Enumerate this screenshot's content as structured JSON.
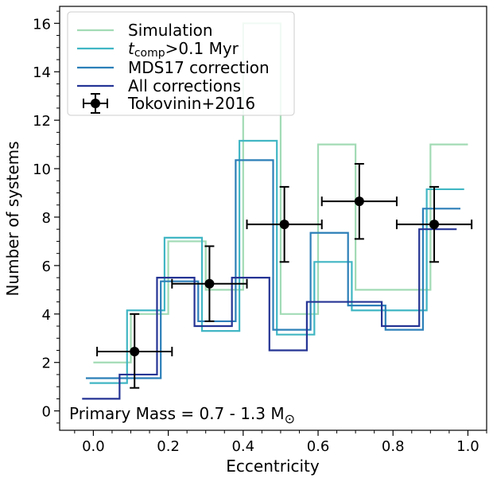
{
  "chart_data": {
    "type": "step-histogram",
    "xlabel": "Eccentricity",
    "ylabel": "Number of systems",
    "xlim": [
      -0.09,
      1.05
    ],
    "ylim": [
      -0.8,
      16.7
    ],
    "xticks": [
      0.0,
      0.2,
      0.4,
      0.6,
      0.8,
      1.0
    ],
    "xtick_labels": [
      "0.0",
      "0.2",
      "0.4",
      "0.6",
      "0.8",
      "1.0"
    ],
    "yticks": [
      0,
      2,
      4,
      6,
      8,
      10,
      12,
      14,
      16
    ],
    "ytick_labels": [
      "0",
      "2",
      "4",
      "6",
      "8",
      "10",
      "12",
      "14",
      "16"
    ],
    "annotation": "Primary Mass = 0.7 - 1.3 M",
    "annotation_symbol": "⊙",
    "legend_position": "upper-left",
    "series": [
      {
        "name": "Simulation",
        "name_parts": [
          "Simulation"
        ],
        "color": "#a2dbb5",
        "edges": [
          0.0,
          0.1,
          0.2,
          0.3,
          0.4,
          0.5,
          0.6,
          0.7,
          0.8,
          0.9,
          1.0
        ],
        "values": [
          2,
          4,
          7,
          5,
          16,
          4,
          11,
          5,
          5,
          11
        ]
      },
      {
        "name": "tcomp>0.1 Myr",
        "name_parts": [
          "t",
          "comp",
          ">0.1 Myr"
        ],
        "color": "#41b6c4",
        "edges": [
          -0.01,
          0.09,
          0.19,
          0.29,
          0.39,
          0.49,
          0.59,
          0.69,
          0.79,
          0.89,
          0.99
        ],
        "values": [
          1.15,
          4.15,
          7.15,
          3.3,
          11.15,
          3.15,
          6.15,
          4.15,
          4.15,
          9.15
        ]
      },
      {
        "name": "MDS17 correction",
        "name_parts": [
          "MDS17 correction"
        ],
        "color": "#2c7fb8",
        "edges": [
          -0.02,
          0.08,
          0.18,
          0.28,
          0.38,
          0.48,
          0.58,
          0.68,
          0.78,
          0.88,
          0.98
        ],
        "values": [
          1.35,
          1.35,
          5.35,
          3.7,
          10.35,
          3.35,
          7.35,
          4.35,
          3.35,
          8.35
        ]
      },
      {
        "name": "All corrections",
        "name_parts": [
          "All corrections"
        ],
        "color": "#253494",
        "edges": [
          -0.03,
          0.07,
          0.17,
          0.27,
          0.37,
          0.47,
          0.57,
          0.67,
          0.77,
          0.87,
          0.97
        ],
        "values": [
          0.5,
          1.5,
          5.5,
          3.5,
          5.5,
          2.5,
          4.5,
          4.5,
          3.5,
          7.5
        ]
      }
    ],
    "observations": {
      "name": "Tokovinin+2016",
      "color": "#000000",
      "points": [
        {
          "x": 0.11,
          "y": 2.45,
          "xerr": 0.1,
          "yerr_low": 1.5,
          "yerr_high": 1.55
        },
        {
          "x": 0.31,
          "y": 5.25,
          "xerr": 0.1,
          "yerr_low": 1.55,
          "yerr_high": 1.55
        },
        {
          "x": 0.51,
          "y": 7.7,
          "xerr": 0.1,
          "yerr_low": 1.55,
          "yerr_high": 1.55
        },
        {
          "x": 0.71,
          "y": 8.65,
          "xerr": 0.1,
          "yerr_low": 1.55,
          "yerr_high": 1.55
        },
        {
          "x": 0.91,
          "y": 7.7,
          "xerr": 0.1,
          "yerr_low": 1.55,
          "yerr_high": 1.55
        }
      ]
    }
  }
}
